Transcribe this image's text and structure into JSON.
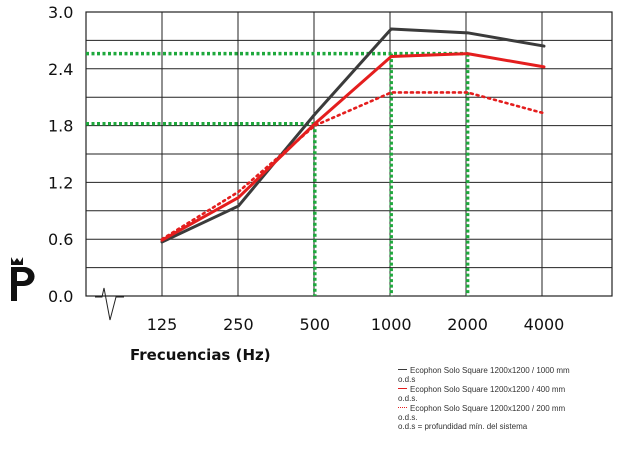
{
  "chart_data": {
    "type": "line",
    "xlabel": "Frecuencias (Hz)",
    "ylabel": "",
    "categories": [
      "125",
      "250",
      "500",
      "1000",
      "2000",
      "4000"
    ],
    "y_ticks": [
      "3.0",
      "2.4",
      "1.8",
      "1.2",
      "0.6",
      "0.0"
    ],
    "ylim": [
      0,
      3.0
    ],
    "grid": true,
    "legend_position": "bottom-right",
    "series": [
      {
        "name": "Ecophon Solo Square 1200x1200 / 1000 mm o.d.s",
        "color": "#3b3b3b",
        "style": "solid",
        "values": [
          0.57,
          0.95,
          1.92,
          2.82,
          2.78,
          2.64
        ]
      },
      {
        "name": "Ecophon Solo Square 1200x1200 / 400 mm o.d.s.",
        "color": "#e41e1e",
        "style": "solid",
        "values": [
          0.59,
          1.04,
          1.82,
          2.53,
          2.56,
          2.42
        ]
      },
      {
        "name": "Ecophon Solo Square 1200x1200 / 200 mm o.d.s.",
        "color": "#e41e1e",
        "style": "dotted",
        "values": [
          0.6,
          1.1,
          1.8,
          2.15,
          2.15,
          1.93
        ]
      }
    ],
    "reference_lines": {
      "color": "#1ea83c",
      "horizontal_values": [
        2.56,
        1.82
      ],
      "vertical_categories": [
        "500",
        "1000",
        "2000"
      ]
    }
  },
  "legend": {
    "items": [
      "Ecophon Solo Square 1200x1200 / 1000 mm",
      "o.d.s",
      "Ecophon Solo Square 1200x1200 / 400 mm",
      "o.d.s.",
      "Ecophon Solo Square 1200x1200 / 200 mm",
      "o.d.s."
    ],
    "footnote": "o.d.s = profundidad mín. del sistema"
  },
  "logo": {
    "icon": "crowned-p-logo-icon",
    "color": "#111111"
  }
}
